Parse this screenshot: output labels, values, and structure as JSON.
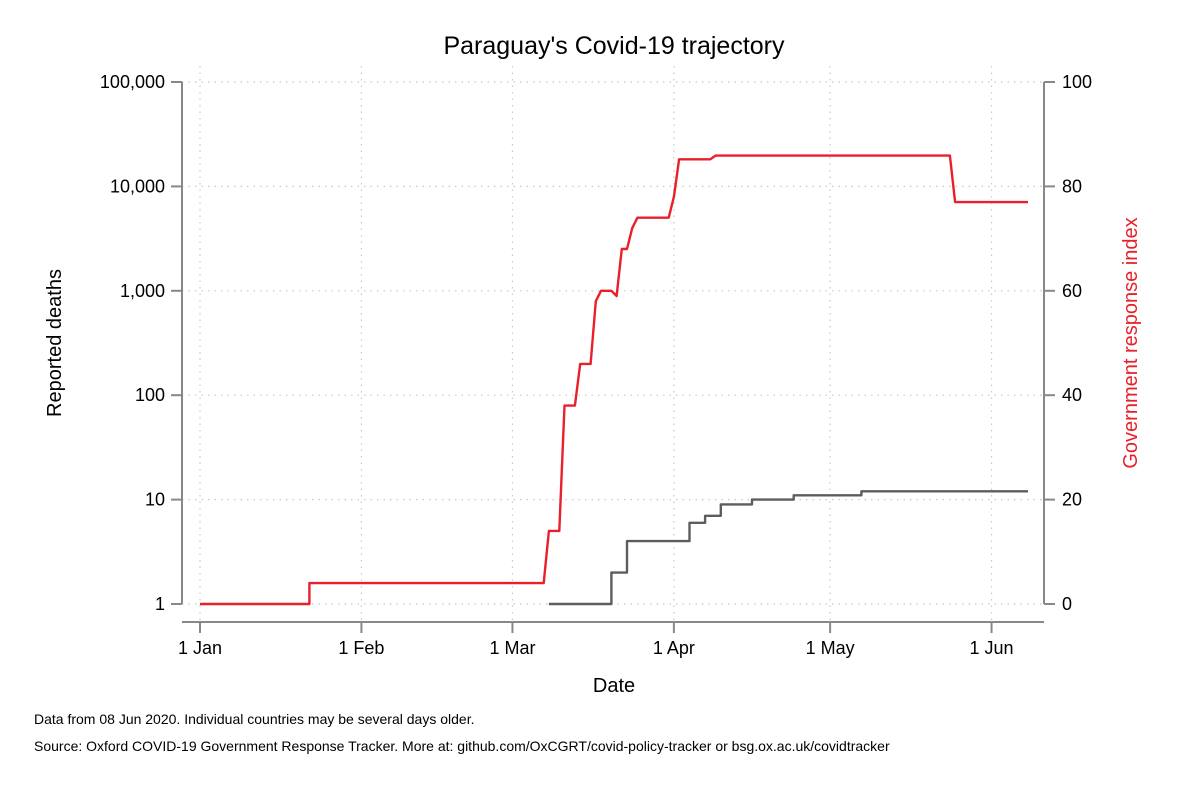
{
  "chart_data": {
    "type": "line",
    "title": "Paraguay's Covid-19 trajectory",
    "xlabel": "Date",
    "ylabel_left": "Reported deaths",
    "ylabel_right": "Government response index",
    "x_ticks": [
      "1 Jan",
      "1 Feb",
      "1 Mar",
      "1 Apr",
      "1 May",
      "1 Jun"
    ],
    "x_tick_dates": [
      "2020-01-01",
      "2020-02-01",
      "2020-03-01",
      "2020-04-01",
      "2020-05-01",
      "2020-06-01"
    ],
    "xlim": [
      "2020-01-01",
      "2020-06-08"
    ],
    "y_left_scale": "log",
    "y_left_ticks": [
      "1",
      "10",
      "100",
      "1,000",
      "10,000",
      "100,000"
    ],
    "y_left_tick_values": [
      1,
      10,
      100,
      1000,
      10000,
      100000
    ],
    "ylim_left": [
      1,
      100000
    ],
    "y_right_ticks": [
      "0",
      "20",
      "40",
      "60",
      "80",
      "100"
    ],
    "y_right_tick_values": [
      0,
      20,
      40,
      60,
      80,
      100
    ],
    "ylim_right": [
      0,
      100
    ],
    "grid": true,
    "series": [
      {
        "name": "Government response index",
        "axis": "right",
        "color": "#e8202a",
        "step": true,
        "points": [
          [
            "2020-01-01",
            0
          ],
          [
            "2020-01-22",
            0
          ],
          [
            "2020-01-22",
            4
          ],
          [
            "2020-03-07",
            4
          ],
          [
            "2020-03-08",
            14
          ],
          [
            "2020-03-10",
            14
          ],
          [
            "2020-03-11",
            38
          ],
          [
            "2020-03-13",
            38
          ],
          [
            "2020-03-14",
            46
          ],
          [
            "2020-03-16",
            46
          ],
          [
            "2020-03-17",
            58
          ],
          [
            "2020-03-18",
            60
          ],
          [
            "2020-03-20",
            60
          ],
          [
            "2020-03-21",
            59
          ],
          [
            "2020-03-22",
            68
          ],
          [
            "2020-03-23",
            68
          ],
          [
            "2020-03-24",
            72
          ],
          [
            "2020-03-25",
            74
          ],
          [
            "2020-03-31",
            74
          ],
          [
            "2020-04-01",
            78
          ],
          [
            "2020-04-02",
            85.2
          ],
          [
            "2020-04-08",
            85.2
          ],
          [
            "2020-04-09",
            85.9
          ],
          [
            "2020-05-24",
            85.9
          ],
          [
            "2020-05-25",
            77
          ],
          [
            "2020-06-08",
            77
          ]
        ]
      },
      {
        "name": "Reported deaths",
        "axis": "left",
        "color": "#5d5d5d",
        "step": true,
        "points": [
          [
            "2020-03-08",
            1
          ],
          [
            "2020-03-20",
            1
          ],
          [
            "2020-03-20",
            2
          ],
          [
            "2020-03-23",
            2
          ],
          [
            "2020-03-23",
            4
          ],
          [
            "2020-04-04",
            4
          ],
          [
            "2020-04-04",
            6
          ],
          [
            "2020-04-07",
            6
          ],
          [
            "2020-04-07",
            7
          ],
          [
            "2020-04-10",
            7
          ],
          [
            "2020-04-10",
            9
          ],
          [
            "2020-04-16",
            9
          ],
          [
            "2020-04-16",
            10
          ],
          [
            "2020-04-24",
            10
          ],
          [
            "2020-04-24",
            11
          ],
          [
            "2020-05-07",
            11
          ],
          [
            "2020-05-07",
            12
          ],
          [
            "2020-06-08",
            12
          ]
        ]
      }
    ]
  },
  "footnotes": {
    "line1": "Data from 08 Jun 2020. Individual countries may be several days older.",
    "line2": "Source: Oxford COVID-19 Government Response Tracker. More at: github.com/OxCGRT/covid-policy-tracker or bsg.ox.ac.uk/covidtracker"
  }
}
